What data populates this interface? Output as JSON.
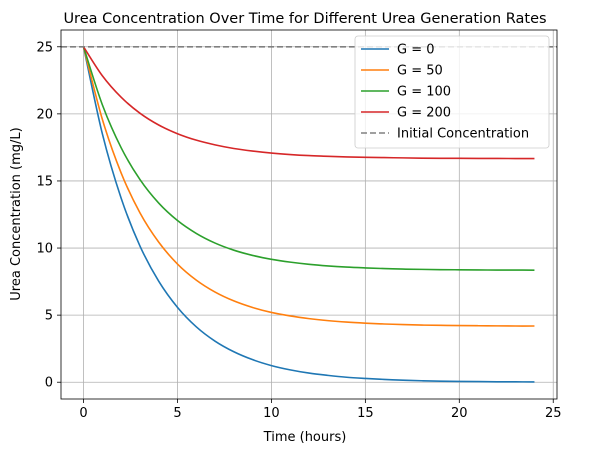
{
  "chart_data": {
    "type": "line",
    "title": "Urea Concentration Over Time for Different Urea Generation Rates",
    "xlabel": "Time (hours)",
    "ylabel": "Urea Concentration (mg/L)",
    "xlim": [
      -1.2,
      25.2
    ],
    "ylim": [
      -1.25,
      26.25
    ],
    "xticks": [
      0,
      5,
      10,
      15,
      20,
      25
    ],
    "yticks": [
      0,
      5,
      10,
      15,
      20,
      25
    ],
    "grid": true,
    "legend_position": "top-right",
    "x": [
      0,
      1,
      2,
      3,
      4,
      5,
      6,
      7,
      8,
      9,
      10,
      11,
      12,
      13,
      14,
      15,
      16,
      17,
      18,
      19,
      20,
      21,
      22,
      23,
      24
    ],
    "series": [
      {
        "name": "G = 0",
        "color": "#1f77b4",
        "style": "solid",
        "values": [
          25.0,
          18.52,
          13.72,
          10.16,
          7.53,
          5.58,
          4.13,
          3.06,
          2.27,
          1.68,
          1.24,
          0.92,
          0.68,
          0.51,
          0.37,
          0.28,
          0.21,
          0.15,
          0.11,
          0.08,
          0.06,
          0.05,
          0.03,
          0.03,
          0.02
        ]
      },
      {
        "name": "G = 50",
        "color": "#ff7f0e",
        "style": "solid",
        "values": [
          25.0,
          19.6,
          15.6,
          12.63,
          10.44,
          8.81,
          7.61,
          6.72,
          6.06,
          5.57,
          5.2,
          4.94,
          4.74,
          4.59,
          4.48,
          4.4,
          4.34,
          4.3,
          4.26,
          4.24,
          4.22,
          4.21,
          4.2,
          4.19,
          4.19
        ]
      },
      {
        "name": "G = 100",
        "color": "#2ca02c",
        "style": "solid",
        "values": [
          25.0,
          20.68,
          17.48,
          15.11,
          13.35,
          12.05,
          11.09,
          10.37,
          9.84,
          9.45,
          9.16,
          8.95,
          8.79,
          8.67,
          8.58,
          8.52,
          8.47,
          8.43,
          8.41,
          8.39,
          8.38,
          8.37,
          8.36,
          8.36,
          8.35
        ]
      },
      {
        "name": "G = 200",
        "color": "#d62728",
        "style": "solid",
        "values": [
          25.0,
          22.84,
          21.24,
          20.05,
          19.17,
          18.52,
          18.04,
          17.69,
          17.42,
          17.23,
          17.08,
          16.97,
          16.89,
          16.84,
          16.79,
          16.76,
          16.74,
          16.72,
          16.7,
          16.69,
          16.69,
          16.68,
          16.68,
          16.67,
          16.67
        ]
      },
      {
        "name": "Initial Concentration",
        "color": "#808080",
        "style": "dashed",
        "values": [
          25,
          25,
          25,
          25,
          25,
          25,
          25,
          25,
          25,
          25,
          25,
          25,
          25,
          25,
          25,
          25,
          25,
          25,
          25,
          25,
          25,
          25,
          25,
          25,
          25
        ]
      }
    ]
  }
}
